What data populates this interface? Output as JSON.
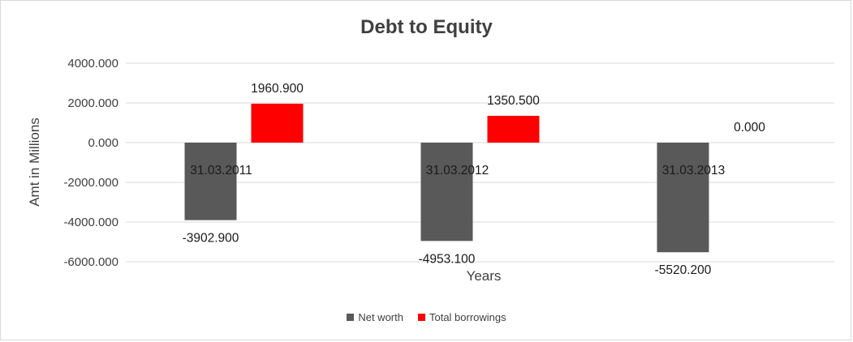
{
  "chart_data": {
    "type": "bar",
    "title": "Debt to Equity",
    "xlabel": "Years",
    "ylabel": "Amt in Millions",
    "categories": [
      "31.03.2011",
      "31.03.2012",
      "31.03.2013"
    ],
    "series": [
      {
        "name": "Net worth",
        "color": "#595959",
        "values": [
          -3902.9,
          -4953.1,
          -5520.2
        ],
        "labels": [
          "-3902.900",
          "-4953.100",
          "-5520.200"
        ]
      },
      {
        "name": "Total borrowings",
        "color": "#ff0000",
        "values": [
          1960.9,
          1350.5,
          0.0
        ],
        "labels": [
          "1960.900",
          "1350.500",
          "0.000"
        ]
      }
    ],
    "ylim": [
      -6000,
      4000
    ],
    "yticks": [
      4000,
      2000,
      0,
      -2000,
      -4000,
      -6000
    ],
    "ytick_labels": [
      "4000.000",
      "2000.000",
      "0.000",
      "-2000.000",
      "-4000.000",
      "-6000.000"
    ],
    "grid": true,
    "legend_position": "bottom"
  }
}
